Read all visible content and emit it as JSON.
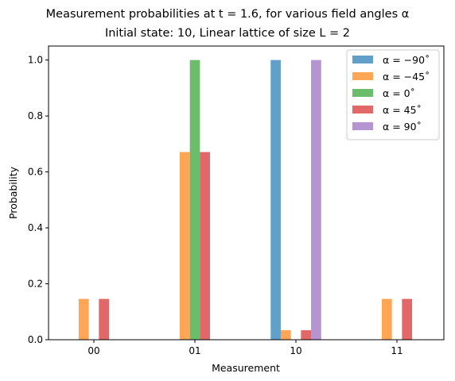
{
  "chart_data": {
    "type": "bar",
    "title_line1": "Measurement probabilities at t = 1.6, for various field angles α",
    "title_line2": "Initial state: 10, Linear lattice of size L = 2",
    "xlabel": "Measurement",
    "ylabel": "Probability",
    "categories": [
      "00",
      "01",
      "10",
      "11"
    ],
    "ylim": [
      0,
      1.05
    ],
    "yticks": [
      "0.0",
      "0.2",
      "0.4",
      "0.6",
      "0.8",
      "1.0"
    ],
    "grid": false,
    "legend_position": "top-right",
    "series": [
      {
        "name": "α = −90˚",
        "color": "#1f77b4",
        "values": [
          0.0,
          0.0,
          1.0,
          0.0
        ]
      },
      {
        "name": "α = −45˚",
        "color": "#ff7f0e",
        "values": [
          0.146,
          0.671,
          0.034,
          0.146
        ]
      },
      {
        "name": "α = 0˚",
        "color": "#2ca02c",
        "values": [
          0.0,
          1.0,
          0.0,
          0.0
        ]
      },
      {
        "name": "α = 45˚",
        "color": "#d62728",
        "values": [
          0.146,
          0.671,
          0.034,
          0.146
        ]
      },
      {
        "name": "α = 90˚",
        "color": "#9467bd",
        "values": [
          0.0,
          0.0,
          1.0,
          0.0
        ]
      }
    ]
  }
}
